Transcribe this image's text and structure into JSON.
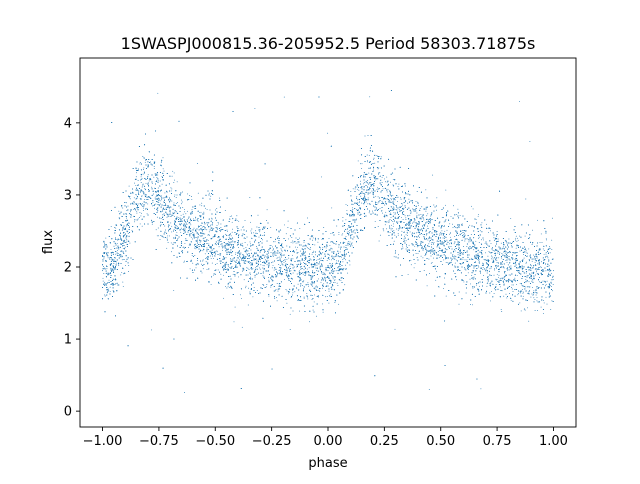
{
  "chart_data": {
    "type": "scatter",
    "title": "1SWASPJ000815.36-205952.5 Period 58303.71875s",
    "xlabel": "phase",
    "ylabel": "flux",
    "xlim": [
      -1.1,
      1.1
    ],
    "ylim": [
      -0.22,
      4.9
    ],
    "x_ticks": [
      -1.0,
      -0.75,
      -0.5,
      -0.25,
      0.0,
      0.25,
      0.5,
      0.75,
      1.0
    ],
    "x_tick_labels": [
      "−1.00",
      "−0.75",
      "−0.50",
      "−0.25",
      "0.00",
      "0.25",
      "0.50",
      "0.75",
      "1.00"
    ],
    "y_ticks": [
      0,
      1,
      2,
      3,
      4
    ],
    "y_tick_labels": [
      "0",
      "1",
      "2",
      "3",
      "4"
    ],
    "grid": false,
    "legend": "none",
    "series": [
      {
        "color": "#1f77b4",
        "marker_size": 0.5,
        "x": [
          -1.0,
          -0.95,
          -0.9,
          -0.85,
          -0.82,
          -0.8,
          -0.75,
          -0.7,
          -0.65,
          -0.6,
          -0.55,
          -0.5,
          -0.45,
          -0.4,
          -0.35,
          -0.3,
          -0.25,
          -0.2,
          -0.15,
          -0.1,
          -0.05,
          0.0,
          0.05,
          0.08,
          0.1,
          0.15,
          0.18,
          0.2,
          0.25,
          0.3,
          0.35,
          0.4,
          0.45,
          0.5,
          0.55,
          0.6,
          0.65,
          0.7,
          0.75,
          0.8,
          0.85,
          0.9,
          0.95,
          1.0
        ],
        "y": [
          1.95,
          2.05,
          2.45,
          2.95,
          3.15,
          3.15,
          2.95,
          2.75,
          2.6,
          2.48,
          2.4,
          2.32,
          2.25,
          2.2,
          2.15,
          2.1,
          2.06,
          2.03,
          2.0,
          1.98,
          1.95,
          1.95,
          2.05,
          2.3,
          2.55,
          2.95,
          3.15,
          3.15,
          2.95,
          2.75,
          2.6,
          2.48,
          2.4,
          2.32,
          2.25,
          2.2,
          2.15,
          2.1,
          2.06,
          2.03,
          2.0,
          1.98,
          1.96,
          1.95
        ]
      }
    ]
  }
}
